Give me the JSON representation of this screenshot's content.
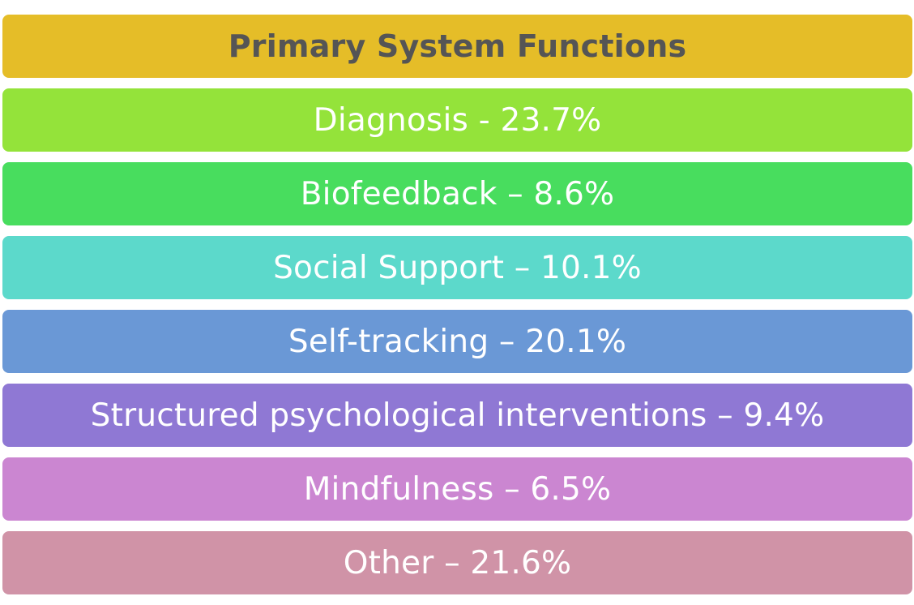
{
  "header": {
    "title": "Primary System Functions",
    "color": "#E5BD28"
  },
  "items": [
    {
      "label": "Diagnosis - 23.7%",
      "name": "Diagnosis",
      "percent": 23.7,
      "color": "#94E33A"
    },
    {
      "label": "Biofeedback – 8.6%",
      "name": "Biofeedback",
      "percent": 8.6,
      "color": "#48DD5E"
    },
    {
      "label": "Social Support – 10.1%",
      "name": "Social Support",
      "percent": 10.1,
      "color": "#5CD9CB"
    },
    {
      "label": "Self-tracking – 20.1%",
      "name": "Self-tracking",
      "percent": 20.1,
      "color": "#6A98D6"
    },
    {
      "label": "Structured psychological interventions – 9.4%",
      "name": "Structured psychological interventions",
      "percent": 9.4,
      "color": "#8F78D4"
    },
    {
      "label": "Mindfulness – 6.5%",
      "name": "Mindfulness",
      "percent": 6.5,
      "color": "#CB86D1"
    },
    {
      "label": "Other – 21.6%",
      "name": "Other",
      "percent": 21.6,
      "color": "#D093A7"
    }
  ]
}
